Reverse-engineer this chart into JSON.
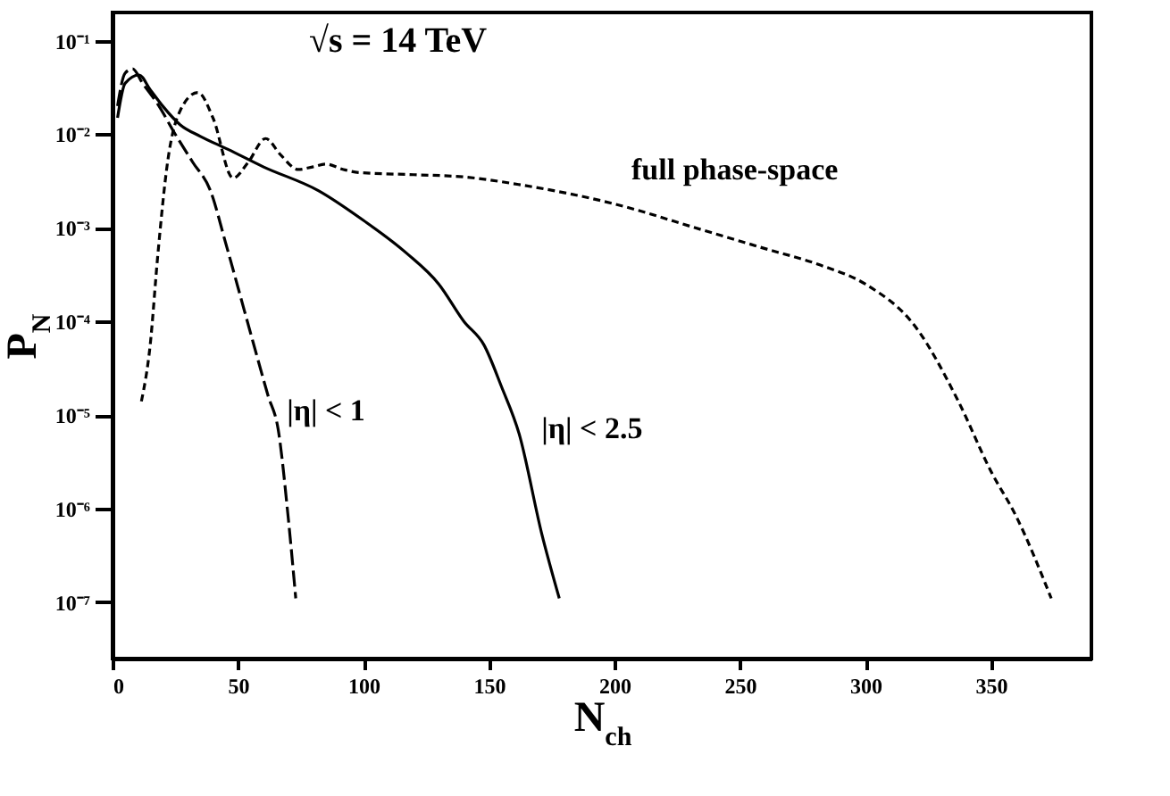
{
  "chart_data": {
    "type": "line",
    "xlabel": "N$_{ch}$",
    "ylabel": "P$_{N}$",
    "annotations": [
      "√s = 14 TeV"
    ],
    "xlim": [
      0,
      390
    ],
    "xticks": [
      0,
      50,
      100,
      150,
      200,
      250,
      300,
      350
    ],
    "ylim": [
      2.5e-08,
      0.2
    ],
    "log": "y",
    "yticks": [
      {
        "value": 0.1,
        "label": "10⁻¹"
      },
      {
        "value": 0.01,
        "label": "10⁻²"
      },
      {
        "value": 0.001,
        "label": "10⁻³"
      },
      {
        "value": 0.0001,
        "label": "10⁻⁴"
      },
      {
        "value": 1e-05,
        "label": "10⁻⁵"
      },
      {
        "value": 1e-06,
        "label": "10⁻⁶"
      },
      {
        "value": 1e-07,
        "label": "10⁻⁷"
      }
    ],
    "grid": false,
    "marker": "none",
    "series": [
      {
        "name": "|η| < 1",
        "color": "#000000",
        "line_style": "dashed",
        "x": [
          2,
          5,
          8,
          12,
          18,
          25,
          32,
          39,
          45,
          50,
          56,
          62,
          66,
          70,
          73
        ],
        "values": [
          0.02,
          0.045,
          0.05,
          0.035,
          0.021,
          0.01,
          0.005,
          0.0025,
          0.0007,
          0.00023,
          6e-05,
          1.6e-05,
          7e-06,
          8e-07,
          1.1e-07
        ]
      },
      {
        "name": "|η| < 2.5",
        "color": "#000000",
        "line_style": "solid",
        "x": [
          2,
          5,
          10.6,
          15,
          20,
          27,
          35,
          46,
          60,
          82,
          100,
          117,
          130,
          140,
          148,
          155,
          162,
          171,
          178
        ],
        "values": [
          0.015,
          0.035,
          0.043,
          0.03,
          0.02,
          0.0126,
          0.0095,
          0.0069,
          0.0045,
          0.0025,
          0.0012,
          0.00054,
          0.00025,
          0.0001,
          5.6e-05,
          2e-05,
          6.3e-06,
          5.4e-07,
          1.1e-07
        ]
      },
      {
        "name": "full phase-space",
        "color": "#000000",
        "line_style": "dotted",
        "x": [
          11.5,
          15,
          18,
          22,
          27,
          34,
          40,
          48,
          54,
          61,
          67,
          74,
          80,
          85,
          92,
          98,
          120,
          140,
          162,
          200,
          235,
          260,
          282,
          300,
          320,
          337,
          350,
          360,
          374
        ],
        "values": [
          1.4e-05,
          5.6e-05,
          0.0005,
          0.0052,
          0.018,
          0.028,
          0.015,
          0.0034,
          0.005,
          0.009,
          0.006,
          0.0042,
          0.0045,
          0.0048,
          0.0042,
          0.0039,
          0.0037,
          0.0035,
          0.0029,
          0.0018,
          0.00095,
          0.0006,
          0.0004,
          0.00025,
          8.7e-05,
          1.4e-05,
          2.5e-06,
          8.3e-07,
          1.1e-07
        ]
      }
    ]
  }
}
